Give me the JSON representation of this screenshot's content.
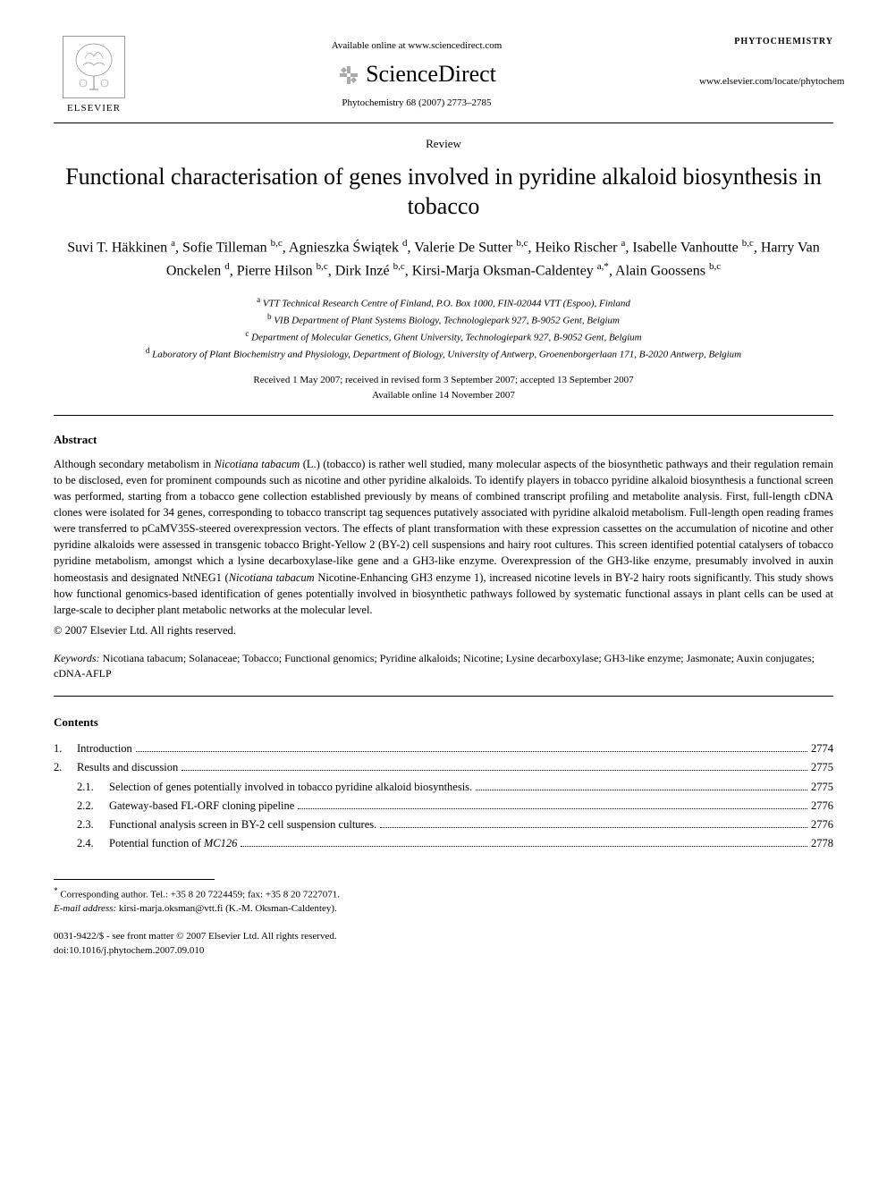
{
  "header": {
    "publisher_name": "ELSEVIER",
    "available_online": "Available online at www.sciencedirect.com",
    "sciencedirect": "ScienceDirect",
    "journal_ref": "Phytochemistry 68 (2007) 2773–2785",
    "journal_name": "PHYTOCHEMISTRY",
    "locate_url": "www.elsevier.com/locate/phytochem"
  },
  "article": {
    "type": "Review",
    "title": "Functional characterisation of genes involved in pyridine alkaloid biosynthesis in tobacco",
    "authors_html": "Suvi T. Häkkinen <sup>a</sup>, Sofie Tilleman <sup>b,c</sup>, Agnieszka Świątek <sup>d</sup>, Valerie De Sutter <sup>b,c</sup>, Heiko Rischer <sup>a</sup>, Isabelle Vanhoutte <sup>b,c</sup>, Harry Van Onckelen <sup>d</sup>, Pierre Hilson <sup>b,c</sup>, Dirk Inzé <sup>b,c</sup>, Kirsi-Marja Oksman-Caldentey <sup>a,*</sup>, Alain Goossens <sup>b,c</sup>",
    "affiliations": [
      {
        "marker": "a",
        "text": "VTT Technical Research Centre of Finland, P.O. Box 1000, FIN-02044 VTT (Espoo), Finland"
      },
      {
        "marker": "b",
        "text": "VIB Department of Plant Systems Biology, Technologiepark 927, B-9052 Gent, Belgium"
      },
      {
        "marker": "c",
        "text": "Department of Molecular Genetics, Ghent University, Technologiepark 927, B-9052 Gent, Belgium"
      },
      {
        "marker": "d",
        "text": "Laboratory of Plant Biochemistry and Physiology, Department of Biology, University of Antwerp, Groenenborgerlaan 171, B-2020 Antwerp, Belgium"
      }
    ],
    "received": "Received 1 May 2007; received in revised form 3 September 2007; accepted 13 September 2007",
    "available": "Available online 14 November 2007"
  },
  "abstract": {
    "heading": "Abstract",
    "body_html": "Although secondary metabolism in <em>Nicotiana tabacum</em> (L.) (tobacco) is rather well studied, many molecular aspects of the biosynthetic pathways and their regulation remain to be disclosed, even for prominent compounds such as nicotine and other pyridine alkaloids. To identify players in tobacco pyridine alkaloid biosynthesis a functional screen was performed, starting from a tobacco gene collection established previously by means of combined transcript profiling and metabolite analysis. First, full-length cDNA clones were isolated for 34 genes, corresponding to tobacco transcript tag sequences putatively associated with pyridine alkaloid metabolism. Full-length open reading frames were transferred to pCaMV35S-steered overexpression vectors. The effects of plant transformation with these expression cassettes on the accumulation of nicotine and other pyridine alkaloids were assessed in transgenic tobacco Bright-Yellow 2 (BY-2) cell suspensions and hairy root cultures. This screen identified potential catalysers of tobacco pyridine metabolism, amongst which a lysine decarboxylase-like gene and a GH3-like enzyme. Overexpression of the GH3-like enzyme, presumably involved in auxin homeostasis and designated NtNEG1 (<em>Nicotiana tabacum</em> Nicotine-Enhancing GH3 enzyme 1), increased nicotine levels in BY-2 hairy roots significantly. This study shows how functional genomics-based identification of genes potentially involved in biosynthetic pathways followed by systematic functional assays in plant cells can be used at large-scale to decipher plant metabolic networks at the molecular level.",
    "copyright": "© 2007 Elsevier Ltd. All rights reserved."
  },
  "keywords": {
    "label": "Keywords:",
    "text": "Nicotiana tabacum; Solanaceae; Tobacco; Functional genomics; Pyridine alkaloids; Nicotine; Lysine decarboxylase; GH3-like enzyme; Jasmonate; Auxin conjugates; cDNA-AFLP"
  },
  "contents": {
    "heading": "Contents",
    "items": [
      {
        "num": "1.",
        "label": "Introduction",
        "page": "2774",
        "sub": false
      },
      {
        "num": "2.",
        "label": "Results and discussion",
        "page": "2775",
        "sub": false
      },
      {
        "num": "2.1.",
        "label": "Selection of genes potentially involved in tobacco pyridine alkaloid biosynthesis.",
        "page": "2775",
        "sub": true
      },
      {
        "num": "2.2.",
        "label": "Gateway-based FL-ORF cloning pipeline",
        "page": "2776",
        "sub": true
      },
      {
        "num": "2.3.",
        "label": "Functional analysis screen in BY-2 cell suspension cultures.",
        "page": "2776",
        "sub": true
      },
      {
        "num": "2.4.",
        "label_html": "Potential function of <em>MC126</em>",
        "page": "2778",
        "sub": true
      }
    ]
  },
  "footnotes": {
    "corresponding": "Corresponding author. Tel.: +35 8 20 7224459; fax: +35 8 20 7227071.",
    "email_label": "E-mail address:",
    "email": "kirsi-marja.oksman@vtt.fi",
    "email_person": "(K.-M. Oksman-Caldentey)."
  },
  "footer": {
    "issn": "0031-9422/$ - see front matter © 2007 Elsevier Ltd. All rights reserved.",
    "doi": "doi:10.1016/j.phytochem.2007.09.010"
  }
}
